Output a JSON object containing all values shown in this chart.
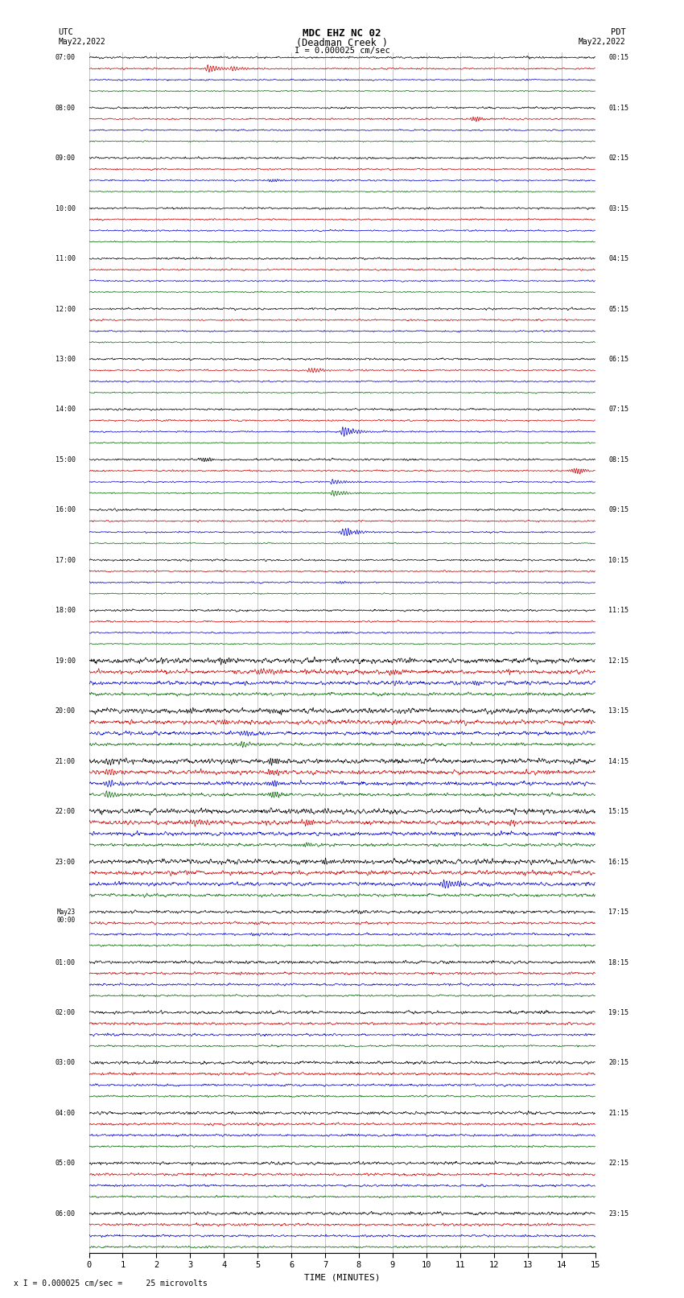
{
  "title_line1": "MDC EHZ NC 02",
  "title_line2": "(Deadman Creek )",
  "scale_text": "I = 0.000025 cm/sec",
  "left_label_top": "UTC",
  "left_label_date": "May22,2022",
  "right_label_top": "PDT",
  "right_label_date": "May22,2022",
  "bottom_label": "TIME (MINUTES)",
  "footer_text": "x I = 0.000025 cm/sec =     25 microvolts",
  "trace_colors": [
    "#000000",
    "#cc0000",
    "#0000cc",
    "#006600"
  ],
  "background_color": "#ffffff",
  "grid_color": "#888888",
  "n_hour_blocks": 24,
  "minutes_per_trace": 15
}
